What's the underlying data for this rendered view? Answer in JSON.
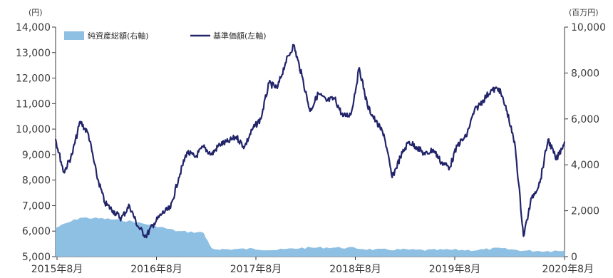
{
  "chart_data": {
    "type": "line",
    "title": "",
    "left_unit": "(円)",
    "right_unit": "(百万円)",
    "x_ticks": [
      "2015年8月",
      "2016年8月",
      "2017年8月",
      "2018年8月",
      "2019年8月",
      "2020年8月"
    ],
    "x_range": [
      "2015-06",
      "2020-08"
    ],
    "y_left": {
      "ylim": [
        5000,
        14000
      ],
      "ticks": [
        "5,000",
        "6,000",
        "7,000",
        "8,000",
        "9,000",
        "10,000",
        "11,000",
        "12,000",
        "13,000",
        "14,000"
      ]
    },
    "y_right": {
      "ylim": [
        0,
        10000
      ],
      "ticks": [
        "0",
        "2,000",
        "4,000",
        "6,000",
        "8,000",
        "10,000"
      ]
    },
    "grid": false,
    "legend_position": "top-left",
    "colors": {
      "nav": "#22246a",
      "assets": "#8ec0e4",
      "axis": "#3a3a3a"
    },
    "series": [
      {
        "name": "純資産総額(右軸)",
        "type": "area",
        "axis": "right",
        "x": [
          "2015-06",
          "2015-09",
          "2015-12",
          "2016-03",
          "2016-06",
          "2016-09",
          "2016-12",
          "2017-01",
          "2017-03",
          "2017-06",
          "2017-09",
          "2017-12",
          "2018-03",
          "2018-06",
          "2018-09",
          "2018-12",
          "2019-03",
          "2019-06",
          "2019-09",
          "2019-12",
          "2020-03",
          "2020-06",
          "2020-08"
        ],
        "values": [
          1250,
          1700,
          1650,
          1550,
          1350,
          1100,
          1050,
          330,
          320,
          340,
          290,
          380,
          400,
          380,
          300,
          310,
          280,
          300,
          280,
          360,
          260,
          240,
          280
        ]
      },
      {
        "name": "基準価額(左軸)",
        "type": "line",
        "axis": "left",
        "x": [
          "2015-06",
          "2015-07",
          "2015-08",
          "2015-09",
          "2015-10",
          "2015-11",
          "2015-12",
          "2016-01",
          "2016-02",
          "2016-03",
          "2016-04",
          "2016-05",
          "2016-06",
          "2016-07",
          "2016-08",
          "2016-09",
          "2016-10",
          "2016-11",
          "2016-12",
          "2017-01",
          "2017-02",
          "2017-03",
          "2017-04",
          "2017-05",
          "2017-06",
          "2017-07",
          "2017-08",
          "2017-09",
          "2017-10",
          "2017-11",
          "2017-12",
          "2018-01",
          "2018-02",
          "2018-03",
          "2018-04",
          "2018-05",
          "2018-06",
          "2018-07",
          "2018-08",
          "2018-09",
          "2018-10",
          "2018-11",
          "2018-12",
          "2019-01",
          "2019-02",
          "2019-03",
          "2019-04",
          "2019-05",
          "2019-06",
          "2019-07",
          "2019-08",
          "2019-09",
          "2019-10",
          "2019-11",
          "2019-12",
          "2020-01",
          "2020-02",
          "2020-03",
          "2020-04",
          "2020-05",
          "2020-06",
          "2020-07",
          "2020-08"
        ],
        "values": [
          9600,
          8300,
          9000,
          10300,
          9800,
          8200,
          7100,
          6800,
          6500,
          7000,
          6200,
          5800,
          6300,
          6700,
          6900,
          8100,
          9100,
          8900,
          9300,
          9000,
          9400,
          9500,
          9700,
          9300,
          10000,
          10400,
          11800,
          11600,
          12600,
          13300,
          12100,
          10700,
          11400,
          11100,
          11200,
          10500,
          10600,
          12400,
          10900,
          10300,
          9800,
          8100,
          8900,
          9500,
          9300,
          9000,
          9200,
          8700,
          8500,
          9400,
          9700,
          10700,
          11100,
          11500,
          11600,
          10700,
          9300,
          5800,
          7300,
          7900,
          9600,
          8800,
          9500
        ]
      }
    ]
  }
}
